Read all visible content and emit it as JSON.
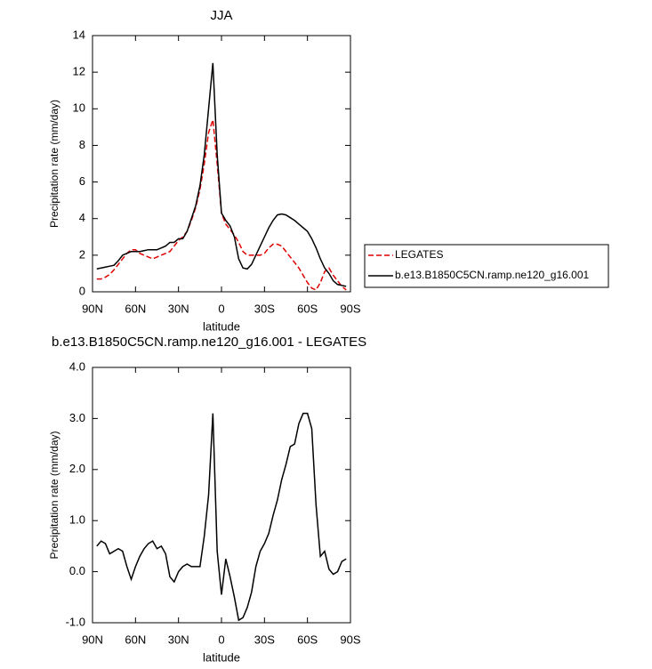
{
  "chart_data": [
    {
      "type": "line",
      "title": "JJA",
      "xlabel": "latitude",
      "ylabel": "Precipitation rate (mm/day)",
      "x": [
        87,
        84,
        81,
        78,
        75,
        72,
        69,
        66,
        63,
        60,
        57,
        54,
        51,
        48,
        45,
        42,
        39,
        36,
        33,
        30,
        27,
        24,
        21,
        18,
        15,
        12,
        9,
        6,
        3,
        0,
        -3,
        -6,
        -9,
        -12,
        -15,
        -18,
        -21,
        -24,
        -27,
        -30,
        -33,
        -36,
        -39,
        -42,
        -45,
        -48,
        -51,
        -54,
        -57,
        -60,
        -63,
        -66,
        -69,
        -72,
        -75,
        -78,
        -81,
        -84,
        -87
      ],
      "series": [
        {
          "name": "LEGATES",
          "color": "#e00000",
          "line_style": "dashed",
          "values": [
            0.7,
            0.7,
            0.8,
            0.95,
            1.2,
            1.5,
            1.8,
            2.1,
            2.3,
            2.3,
            2.1,
            2.0,
            1.9,
            1.8,
            1.9,
            2.0,
            2.1,
            2.2,
            2.5,
            2.8,
            3.0,
            3.3,
            3.9,
            4.6,
            5.6,
            7.0,
            8.7,
            9.4,
            7.0,
            4.3,
            3.7,
            3.4,
            3.1,
            2.7,
            2.2,
            2.0,
            2.0,
            2.0,
            2.0,
            2.1,
            2.4,
            2.6,
            2.6,
            2.5,
            2.2,
            1.9,
            1.6,
            1.3,
            0.9,
            0.5,
            0.2,
            0.1,
            0.5,
            1.1,
            1.3,
            0.9,
            0.6,
            0.3,
            0.1
          ]
        },
        {
          "name": "b.e13.B1850C5CN.ramp.ne120_g16.001",
          "color": "#000000",
          "line_style": "solid",
          "values": [
            1.25,
            1.3,
            1.35,
            1.4,
            1.45,
            1.7,
            2.0,
            2.1,
            2.2,
            2.2,
            2.2,
            2.25,
            2.3,
            2.3,
            2.3,
            2.4,
            2.5,
            2.7,
            2.7,
            2.9,
            2.9,
            3.3,
            4.0,
            4.7,
            5.8,
            7.5,
            10.0,
            12.5,
            7.5,
            4.3,
            3.9,
            3.6,
            3.0,
            1.8,
            1.3,
            1.25,
            1.5,
            2.0,
            2.5,
            3.0,
            3.5,
            3.9,
            4.2,
            4.25,
            4.2,
            4.05,
            3.9,
            3.7,
            3.5,
            3.3,
            2.9,
            2.4,
            1.8,
            1.3,
            1.0,
            0.6,
            0.4,
            0.35,
            0.3
          ]
        }
      ],
      "xlim": [
        90,
        -90
      ],
      "xticks": [
        {
          "value": 90,
          "label": "90N"
        },
        {
          "value": 60,
          "label": "60N"
        },
        {
          "value": 30,
          "label": "30N"
        },
        0,
        {
          "value": -30,
          "label": "30S"
        },
        {
          "value": -60,
          "label": "60S"
        },
        {
          "value": -90,
          "label": "90S"
        }
      ],
      "ylim": [
        0,
        14
      ],
      "yticks": [
        0,
        2,
        4,
        6,
        8,
        10,
        12,
        14
      ],
      "legend": "right"
    },
    {
      "type": "line",
      "title": "b.e13.B1850C5CN.ramp.ne120_g16.001 - LEGATES",
      "xlabel": "latitude",
      "ylabel": "Precipitation rate (mm/day)",
      "x": [
        87,
        84,
        81,
        78,
        75,
        72,
        69,
        66,
        63,
        60,
        57,
        54,
        51,
        48,
        45,
        42,
        39,
        36,
        33,
        30,
        27,
        24,
        21,
        18,
        15,
        12,
        9,
        6,
        3,
        0,
        -3,
        -6,
        -9,
        -12,
        -15,
        -18,
        -21,
        -24,
        -27,
        -30,
        -33,
        -36,
        -39,
        -42,
        -45,
        -48,
        -51,
        -54,
        -57,
        -60,
        -63,
        -66,
        -69,
        -72,
        -75,
        -78,
        -81,
        -84,
        -87
      ],
      "values": [
        0.5,
        0.6,
        0.55,
        0.35,
        0.4,
        0.45,
        0.4,
        0.1,
        -0.15,
        0.1,
        0.3,
        0.45,
        0.55,
        0.6,
        0.45,
        0.5,
        0.35,
        -0.1,
        -0.2,
        0.0,
        0.1,
        0.15,
        0.1,
        0.1,
        0.1,
        0.7,
        1.5,
        3.1,
        0.4,
        -0.45,
        0.25,
        -0.1,
        -0.5,
        -0.95,
        -0.9,
        -0.7,
        -0.4,
        0.1,
        0.4,
        0.55,
        0.75,
        1.1,
        1.4,
        1.8,
        2.1,
        2.45,
        2.5,
        2.9,
        3.1,
        3.1,
        2.8,
        1.3,
        0.3,
        0.4,
        0.05,
        -0.05,
        0.0,
        0.2,
        0.25
      ],
      "color": "#000000",
      "xlim": [
        90,
        -90
      ],
      "xticks": [
        {
          "value": 90,
          "label": "90N"
        },
        {
          "value": 60,
          "label": "60N"
        },
        {
          "value": 30,
          "label": "30N"
        },
        0,
        {
          "value": -30,
          "label": "30S"
        },
        {
          "value": -60,
          "label": "60S"
        },
        {
          "value": -90,
          "label": "90S"
        }
      ],
      "ylim": [
        -1,
        4
      ],
      "yticks": [
        {
          "value": -1,
          "label": "-1.0"
        },
        {
          "value": 0,
          "label": "0.0"
        },
        {
          "value": 1,
          "label": "1.0"
        },
        {
          "value": 2,
          "label": "2.0"
        },
        {
          "value": 3,
          "label": "3.0"
        },
        {
          "value": 4,
          "label": "4.0"
        }
      ]
    }
  ]
}
